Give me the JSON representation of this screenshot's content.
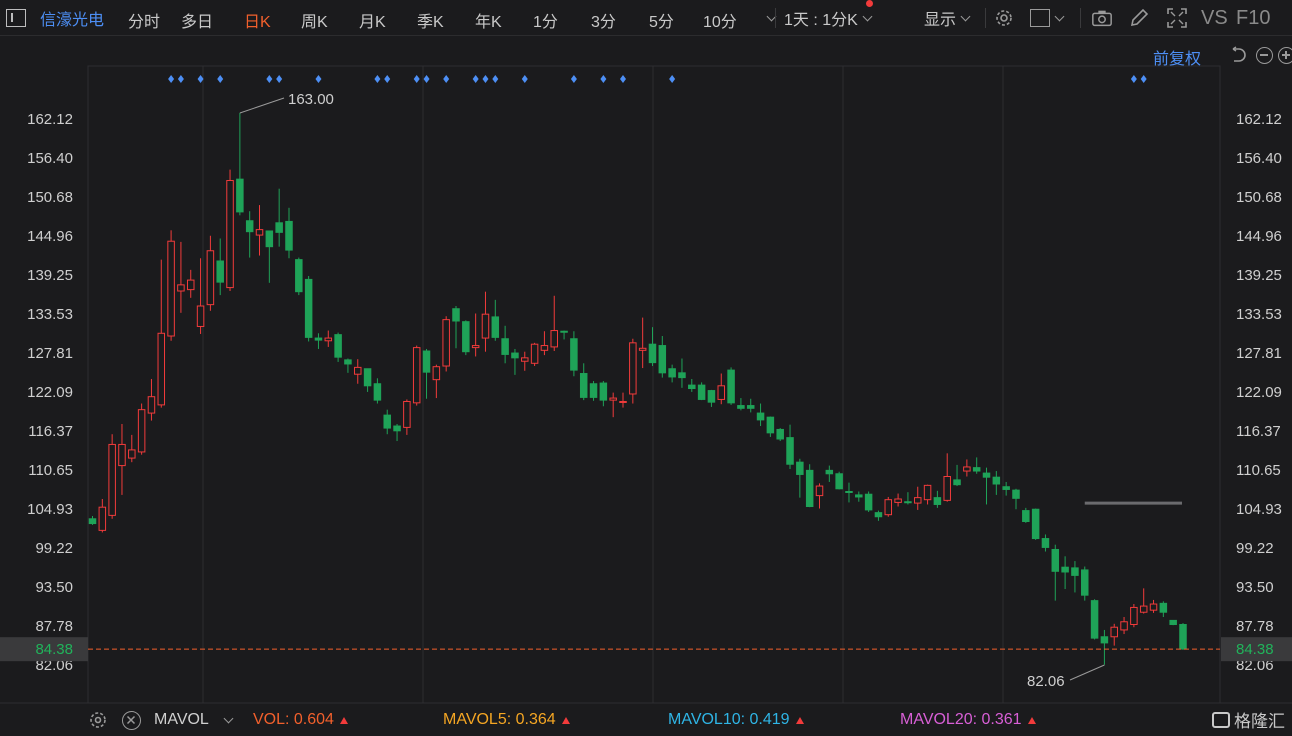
{
  "toolbar": {
    "stock_name": "信濠光电",
    "periods": [
      {
        "label": "分时",
        "active": false
      },
      {
        "label": "多日",
        "active": false
      },
      {
        "label": "日K",
        "active": true
      },
      {
        "label": "周K",
        "active": false
      },
      {
        "label": "月K",
        "active": false
      },
      {
        "label": "季K",
        "active": false
      },
      {
        "label": "年K",
        "active": false
      },
      {
        "label": "1分",
        "active": false
      },
      {
        "label": "3分",
        "active": false
      },
      {
        "label": "5分",
        "active": false
      },
      {
        "label": "10分",
        "active": false
      }
    ],
    "interval_select": "1天 : 1分K",
    "display_label": "显示",
    "vs_label": "VS",
    "f10_label": "F10"
  },
  "subheader": {
    "adjust_label": "前复权"
  },
  "colors": {
    "up": "#f23b3b",
    "down": "#1fa358",
    "grid": "#2d2d30",
    "accent": "#4d8ff5",
    "price_line": "#f2602c"
  },
  "chart_data": {
    "type": "candlestick",
    "y_ticks": [
      "162.12",
      "156.40",
      "150.68",
      "144.96",
      "139.25",
      "133.53",
      "127.81",
      "122.09",
      "116.37",
      "110.65",
      "104.93",
      "99.22",
      "93.50",
      "87.78",
      "82.06"
    ],
    "y_range": [
      82.06,
      162.12
    ],
    "max_label": "163.00",
    "min_label": "82.06",
    "current_price": "84.38",
    "candles": [
      {
        "o": 103.5,
        "c": 102.8,
        "h": 103.9,
        "l": 102.6
      },
      {
        "o": 101.8,
        "c": 105.2,
        "h": 106.4,
        "l": 101.5
      },
      {
        "o": 104.0,
        "c": 114.4,
        "h": 115.9,
        "l": 103.5
      },
      {
        "o": 111.3,
        "c": 114.4,
        "h": 117.4,
        "l": 107.0
      },
      {
        "o": 112.4,
        "c": 113.6,
        "h": 115.8,
        "l": 111.8
      },
      {
        "o": 113.3,
        "c": 119.5,
        "h": 120.4,
        "l": 112.9
      },
      {
        "o": 119.0,
        "c": 121.4,
        "h": 124.0,
        "l": 117.9
      },
      {
        "o": 120.2,
        "c": 130.7,
        "h": 141.5,
        "l": 119.8
      },
      {
        "o": 130.3,
        "c": 144.2,
        "h": 145.8,
        "l": 129.6
      },
      {
        "o": 136.9,
        "c": 137.8,
        "h": 144.1,
        "l": 133.7
      },
      {
        "o": 137.1,
        "c": 138.5,
        "h": 140.0,
        "l": 135.9
      },
      {
        "o": 131.7,
        "c": 134.7,
        "h": 141.7,
        "l": 130.6
      },
      {
        "o": 134.9,
        "c": 142.8,
        "h": 145.0,
        "l": 134.0
      },
      {
        "o": 141.3,
        "c": 138.2,
        "h": 144.6,
        "l": 136.3
      },
      {
        "o": 137.4,
        "c": 153.1,
        "h": 154.7,
        "l": 136.9
      },
      {
        "o": 153.3,
        "c": 148.5,
        "h": 163.0,
        "l": 148.0
      },
      {
        "o": 147.2,
        "c": 145.6,
        "h": 148.6,
        "l": 141.8
      },
      {
        "o": 145.1,
        "c": 145.9,
        "h": 149.5,
        "l": 142.1
      },
      {
        "o": 145.7,
        "c": 143.4,
        "h": 145.6,
        "l": 138.1
      },
      {
        "o": 146.9,
        "c": 145.5,
        "h": 151.9,
        "l": 143.4
      },
      {
        "o": 147.1,
        "c": 142.9,
        "h": 149.1,
        "l": 141.7
      },
      {
        "o": 141.5,
        "c": 136.8,
        "h": 141.8,
        "l": 136.3
      },
      {
        "o": 138.6,
        "c": 130.1,
        "h": 139.1,
        "l": 129.5
      },
      {
        "o": 130.0,
        "c": 129.7,
        "h": 130.7,
        "l": 128.4
      },
      {
        "o": 129.6,
        "c": 130.0,
        "h": 131.1,
        "l": 128.7
      },
      {
        "o": 130.5,
        "c": 127.2,
        "h": 130.8,
        "l": 126.5
      },
      {
        "o": 126.8,
        "c": 126.2,
        "h": 127.0,
        "l": 124.9
      },
      {
        "o": 124.7,
        "c": 125.7,
        "h": 126.9,
        "l": 123.3
      },
      {
        "o": 125.5,
        "c": 123.0,
        "h": 125.5,
        "l": 122.1
      },
      {
        "o": 123.3,
        "c": 120.9,
        "h": 124.1,
        "l": 120.4
      },
      {
        "o": 118.7,
        "c": 116.8,
        "h": 119.5,
        "l": 115.9
      },
      {
        "o": 117.1,
        "c": 116.4,
        "h": 117.4,
        "l": 114.9
      },
      {
        "o": 116.9,
        "c": 120.7,
        "h": 121.0,
        "l": 115.8
      },
      {
        "o": 120.5,
        "c": 128.6,
        "h": 128.9,
        "l": 120.1
      },
      {
        "o": 128.1,
        "c": 125.0,
        "h": 128.4,
        "l": 121.1
      },
      {
        "o": 123.9,
        "c": 125.8,
        "h": 126.1,
        "l": 121.2
      },
      {
        "o": 125.9,
        "c": 132.7,
        "h": 133.2,
        "l": 125.1
      },
      {
        "o": 134.3,
        "c": 132.5,
        "h": 134.7,
        "l": 128.5
      },
      {
        "o": 132.4,
        "c": 128.0,
        "h": 132.6,
        "l": 127.5
      },
      {
        "o": 128.6,
        "c": 128.9,
        "h": 133.6,
        "l": 127.3
      },
      {
        "o": 130.0,
        "c": 133.5,
        "h": 136.8,
        "l": 128.0
      },
      {
        "o": 133.1,
        "c": 130.1,
        "h": 135.6,
        "l": 129.6
      },
      {
        "o": 129.9,
        "c": 127.6,
        "h": 131.8,
        "l": 126.3
      },
      {
        "o": 127.8,
        "c": 127.1,
        "h": 128.4,
        "l": 124.6
      },
      {
        "o": 126.6,
        "c": 127.1,
        "h": 128.0,
        "l": 125.2
      },
      {
        "o": 126.3,
        "c": 129.1,
        "h": 129.3,
        "l": 125.9
      },
      {
        "o": 128.2,
        "c": 128.9,
        "h": 131.0,
        "l": 127.5
      },
      {
        "o": 128.7,
        "c": 131.1,
        "h": 136.2,
        "l": 128.1
      },
      {
        "o": 131.0,
        "c": 130.9,
        "h": 131.1,
        "l": 129.8
      },
      {
        "o": 129.9,
        "c": 125.3,
        "h": 131.0,
        "l": 124.4
      },
      {
        "o": 124.8,
        "c": 121.3,
        "h": 126.3,
        "l": 120.9
      },
      {
        "o": 123.3,
        "c": 121.3,
        "h": 123.7,
        "l": 120.8
      },
      {
        "o": 123.4,
        "c": 120.9,
        "h": 123.7,
        "l": 120.0
      },
      {
        "o": 120.9,
        "c": 121.2,
        "h": 122.0,
        "l": 118.4
      },
      {
        "o": 120.7,
        "c": 120.7,
        "h": 122.0,
        "l": 119.8
      },
      {
        "o": 121.8,
        "c": 129.3,
        "h": 129.9,
        "l": 120.4
      },
      {
        "o": 128.2,
        "c": 128.5,
        "h": 133.0,
        "l": 125.6
      },
      {
        "o": 129.1,
        "c": 126.4,
        "h": 131.6,
        "l": 125.9
      },
      {
        "o": 128.9,
        "c": 124.9,
        "h": 130.3,
        "l": 124.2
      },
      {
        "o": 125.5,
        "c": 124.3,
        "h": 126.1,
        "l": 123.5
      },
      {
        "o": 124.9,
        "c": 124.2,
        "h": 127.0,
        "l": 122.7
      },
      {
        "o": 123.1,
        "c": 122.6,
        "h": 124.0,
        "l": 122.1
      },
      {
        "o": 123.1,
        "c": 121.0,
        "h": 123.5,
        "l": 120.9
      },
      {
        "o": 122.3,
        "c": 120.6,
        "h": 122.4,
        "l": 119.9
      },
      {
        "o": 121.0,
        "c": 123.0,
        "h": 124.8,
        "l": 120.3
      },
      {
        "o": 125.3,
        "c": 120.5,
        "h": 125.7,
        "l": 120.2
      },
      {
        "o": 120.1,
        "c": 119.7,
        "h": 121.2,
        "l": 119.4
      },
      {
        "o": 120.1,
        "c": 119.7,
        "h": 121.1,
        "l": 119.1
      },
      {
        "o": 119.0,
        "c": 118.0,
        "h": 120.4,
        "l": 117.1
      },
      {
        "o": 118.4,
        "c": 116.1,
        "h": 118.5,
        "l": 115.5
      },
      {
        "o": 116.6,
        "c": 115.2,
        "h": 116.8,
        "l": 114.9
      },
      {
        "o": 115.4,
        "c": 111.5,
        "h": 117.3,
        "l": 110.8
      },
      {
        "o": 111.8,
        "c": 110.0,
        "h": 112.3,
        "l": 106.6
      },
      {
        "o": 110.6,
        "c": 105.3,
        "h": 111.5,
        "l": 105.2
      },
      {
        "o": 106.9,
        "c": 108.3,
        "h": 108.7,
        "l": 105.0
      },
      {
        "o": 110.6,
        "c": 110.1,
        "h": 111.3,
        "l": 108.9
      },
      {
        "o": 110.1,
        "c": 107.9,
        "h": 110.4,
        "l": 107.8
      },
      {
        "o": 107.5,
        "c": 107.4,
        "h": 108.8,
        "l": 105.9
      },
      {
        "o": 107.0,
        "c": 106.7,
        "h": 107.5,
        "l": 106.0
      },
      {
        "o": 107.1,
        "c": 104.8,
        "h": 107.5,
        "l": 104.5
      },
      {
        "o": 104.4,
        "c": 103.8,
        "h": 104.7,
        "l": 103.2
      },
      {
        "o": 104.1,
        "c": 106.3,
        "h": 106.7,
        "l": 103.8
      },
      {
        "o": 105.9,
        "c": 106.4,
        "h": 107.2,
        "l": 105.3
      },
      {
        "o": 106.0,
        "c": 105.9,
        "h": 107.4,
        "l": 105.6
      },
      {
        "o": 105.8,
        "c": 106.6,
        "h": 108.2,
        "l": 104.8
      },
      {
        "o": 106.3,
        "c": 108.4,
        "h": 108.5,
        "l": 105.6
      },
      {
        "o": 106.6,
        "c": 105.6,
        "h": 107.6,
        "l": 105.1
      },
      {
        "o": 106.2,
        "c": 109.7,
        "h": 113.1,
        "l": 106.0
      },
      {
        "o": 109.2,
        "c": 108.5,
        "h": 111.4,
        "l": 108.3
      },
      {
        "o": 110.5,
        "c": 111.1,
        "h": 112.2,
        "l": 109.7
      },
      {
        "o": 111.0,
        "c": 110.5,
        "h": 112.5,
        "l": 110.1
      },
      {
        "o": 110.2,
        "c": 109.6,
        "h": 111.0,
        "l": 105.6
      },
      {
        "o": 109.6,
        "c": 108.6,
        "h": 110.5,
        "l": 107.0
      },
      {
        "o": 108.2,
        "c": 107.8,
        "h": 108.9,
        "l": 106.9
      },
      {
        "o": 107.7,
        "c": 106.5,
        "h": 107.9,
        "l": 104.9
      },
      {
        "o": 104.7,
        "c": 103.1,
        "h": 105.1,
        "l": 102.9
      },
      {
        "o": 104.9,
        "c": 100.6,
        "h": 105.0,
        "l": 100.4
      },
      {
        "o": 100.6,
        "c": 99.3,
        "h": 101.2,
        "l": 98.7
      },
      {
        "o": 99.0,
        "c": 95.8,
        "h": 99.7,
        "l": 91.5
      },
      {
        "o": 96.4,
        "c": 95.7,
        "h": 98.0,
        "l": 93.2
      },
      {
        "o": 96.3,
        "c": 95.2,
        "h": 97.3,
        "l": 92.7
      },
      {
        "o": 96.0,
        "c": 92.3,
        "h": 96.5,
        "l": 91.5
      },
      {
        "o": 91.5,
        "c": 86.0,
        "h": 91.7,
        "l": 85.8
      },
      {
        "o": 86.2,
        "c": 85.3,
        "h": 87.2,
        "l": 82.1
      },
      {
        "o": 86.2,
        "c": 87.6,
        "h": 88.1,
        "l": 84.9
      },
      {
        "o": 87.2,
        "c": 88.4,
        "h": 89.1,
        "l": 86.6
      },
      {
        "o": 88.0,
        "c": 90.5,
        "h": 91.0,
        "l": 87.6
      },
      {
        "o": 89.8,
        "c": 90.7,
        "h": 93.3,
        "l": 89.6
      },
      {
        "o": 90.1,
        "c": 91.0,
        "h": 91.6,
        "l": 89.7
      },
      {
        "o": 91.1,
        "c": 89.8,
        "h": 91.4,
        "l": 89.1
      },
      {
        "o": 88.6,
        "c": 88.0,
        "h": 88.6,
        "l": 87.9
      },
      {
        "o": 88.0,
        "c": 84.4,
        "h": 88.2,
        "l": 84.3
      }
    ],
    "ma_line_value": 105.8,
    "marker_indices": [
      8,
      9,
      11,
      13,
      18,
      19,
      23,
      29,
      30,
      33,
      34,
      36,
      39,
      40,
      41,
      44,
      49,
      52,
      54,
      59,
      106,
      107
    ],
    "title": "",
    "xlabel": "",
    "ylabel": ""
  },
  "volume_bar": {
    "indicator": "MAVOL",
    "items": [
      {
        "label": "VOL:",
        "value": "0.604",
        "color": "#f2602c"
      },
      {
        "label": "MAVOL5:",
        "value": "0.364",
        "color": "#f5a623"
      },
      {
        "label": "MAVOL10:",
        "value": "0.419",
        "color": "#2fb5e6"
      },
      {
        "label": "MAVOL20:",
        "value": "0.361",
        "color": "#d85fd6"
      }
    ],
    "brand": "格隆汇"
  }
}
